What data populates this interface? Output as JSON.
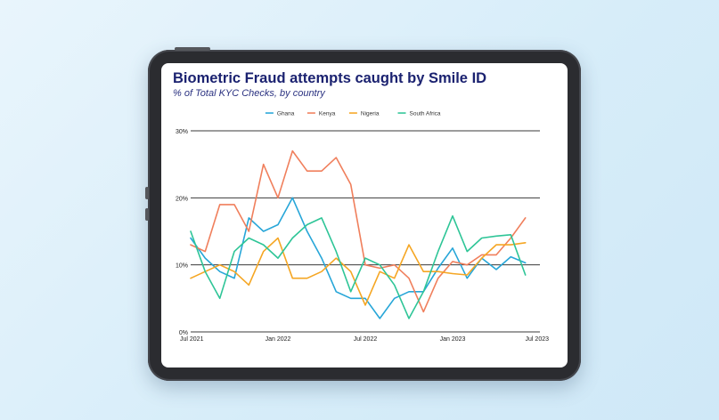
{
  "chart_data": {
    "type": "line",
    "title": "Biometric Fraud attempts caught by Smile ID",
    "subtitle": "% of Total KYC Checks, by country",
    "xlabel": "",
    "ylabel": "",
    "x_tick_labels": [
      "Jul 2021",
      "Jan 2022",
      "Jul 2022",
      "Jan 2023",
      "Jul 2023"
    ],
    "y_ticks": [
      0,
      10,
      20,
      30
    ],
    "y_tick_labels": [
      "0%",
      "10%",
      "20%",
      "30%"
    ],
    "ylim": [
      0,
      30
    ],
    "grid": "horizontal",
    "legend_position": "top-center",
    "x": [
      "2021-07",
      "2021-08",
      "2021-09",
      "2021-10",
      "2021-11",
      "2021-12",
      "2022-01",
      "2022-02",
      "2022-03",
      "2022-04",
      "2022-05",
      "2022-06",
      "2022-07",
      "2022-08",
      "2022-09",
      "2022-10",
      "2022-11",
      "2022-12",
      "2023-01",
      "2023-02",
      "2023-03",
      "2023-04",
      "2023-05",
      "2023-06",
      "2023-07"
    ],
    "series": [
      {
        "name": "Ghana",
        "color": "#27a6d8",
        "values": [
          14,
          11,
          9,
          8,
          17,
          15,
          16,
          20,
          15,
          11,
          6,
          5,
          5,
          2,
          5,
          6,
          6,
          9.5,
          12.5,
          8,
          11,
          9.3,
          11.2,
          10.3,
          null
        ]
      },
      {
        "name": "Kenya",
        "color": "#f07f5c",
        "values": [
          13,
          12,
          19,
          19,
          15,
          25,
          20,
          27,
          24,
          24,
          26,
          22,
          10,
          9.5,
          10,
          8,
          3,
          8,
          10.5,
          10,
          11.5,
          11.5,
          14,
          17,
          null
        ]
      },
      {
        "name": "Nigeria",
        "color": "#f5a623",
        "values": [
          8,
          9,
          10,
          9,
          7,
          12,
          14,
          8,
          8,
          9,
          11,
          9,
          4,
          9,
          8,
          13,
          9,
          9,
          8.7,
          8.5,
          11,
          13,
          13,
          13.3,
          null
        ]
      },
      {
        "name": "South Africa",
        "color": "#2ec597",
        "values": [
          15,
          9,
          5,
          12,
          14,
          13,
          11,
          14,
          16,
          17,
          12,
          6,
          11,
          10,
          7,
          2,
          6,
          12,
          17.3,
          12,
          14,
          14.3,
          14.5,
          8.5,
          null
        ]
      }
    ]
  }
}
